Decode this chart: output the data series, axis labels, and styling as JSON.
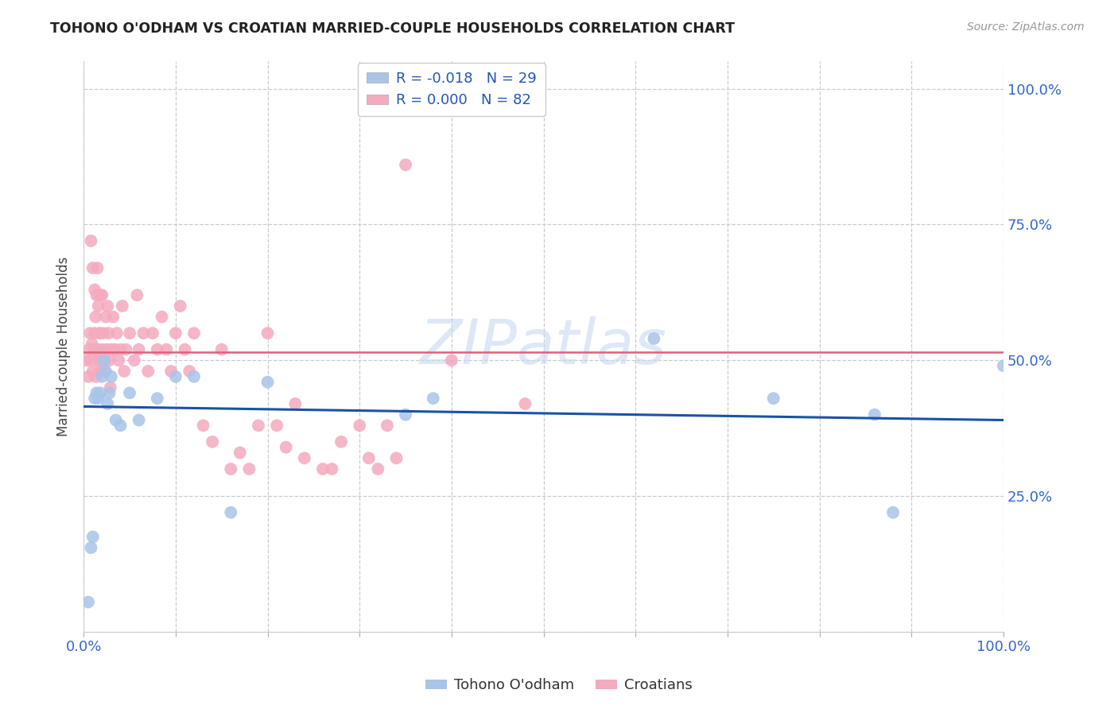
{
  "title": "TOHONO O'ODHAM VS CROATIAN MARRIED-COUPLE HOUSEHOLDS CORRELATION CHART",
  "source": "Source: ZipAtlas.com",
  "ylabel": "Married-couple Households",
  "legend_labels": [
    "Tohono O'odham",
    "Croatians"
  ],
  "r_blue": -0.018,
  "n_blue": 29,
  "r_pink": 0.0,
  "n_pink": 82,
  "blue_color": "#A8C4E8",
  "pink_color": "#F4AABF",
  "blue_line_color": "#1A52A8",
  "pink_line_color": "#E0607A",
  "blue_scatter_x": [
    0.005,
    0.008,
    0.01,
    0.012,
    0.014,
    0.016,
    0.018,
    0.02,
    0.022,
    0.024,
    0.026,
    0.028,
    0.03,
    0.035,
    0.04,
    0.05,
    0.06,
    0.08,
    0.1,
    0.12,
    0.16,
    0.2,
    0.35,
    0.38,
    0.62,
    0.75,
    0.86,
    0.88,
    1.0
  ],
  "blue_scatter_y": [
    0.055,
    0.155,
    0.175,
    0.43,
    0.44,
    0.43,
    0.44,
    0.47,
    0.5,
    0.48,
    0.42,
    0.44,
    0.47,
    0.39,
    0.38,
    0.44,
    0.39,
    0.43,
    0.47,
    0.47,
    0.22,
    0.46,
    0.4,
    0.43,
    0.54,
    0.43,
    0.4,
    0.22,
    0.49
  ],
  "pink_scatter_x": [
    0.003,
    0.005,
    0.006,
    0.007,
    0.008,
    0.008,
    0.009,
    0.01,
    0.01,
    0.011,
    0.012,
    0.012,
    0.013,
    0.013,
    0.014,
    0.015,
    0.015,
    0.016,
    0.016,
    0.017,
    0.018,
    0.018,
    0.019,
    0.02,
    0.02,
    0.021,
    0.022,
    0.023,
    0.024,
    0.025,
    0.026,
    0.027,
    0.028,
    0.029,
    0.03,
    0.032,
    0.034,
    0.036,
    0.038,
    0.04,
    0.042,
    0.044,
    0.046,
    0.05,
    0.055,
    0.058,
    0.06,
    0.065,
    0.07,
    0.075,
    0.08,
    0.085,
    0.09,
    0.095,
    0.1,
    0.105,
    0.11,
    0.115,
    0.12,
    0.13,
    0.14,
    0.15,
    0.16,
    0.17,
    0.18,
    0.19,
    0.2,
    0.21,
    0.22,
    0.23,
    0.24,
    0.26,
    0.27,
    0.28,
    0.3,
    0.31,
    0.32,
    0.33,
    0.34,
    0.35,
    0.4,
    0.48
  ],
  "pink_scatter_y": [
    0.5,
    0.47,
    0.52,
    0.55,
    0.5,
    0.72,
    0.53,
    0.48,
    0.67,
    0.52,
    0.55,
    0.63,
    0.47,
    0.58,
    0.62,
    0.52,
    0.67,
    0.5,
    0.6,
    0.55,
    0.48,
    0.62,
    0.5,
    0.52,
    0.62,
    0.55,
    0.48,
    0.5,
    0.58,
    0.52,
    0.6,
    0.55,
    0.5,
    0.45,
    0.52,
    0.58,
    0.52,
    0.55,
    0.5,
    0.52,
    0.6,
    0.48,
    0.52,
    0.55,
    0.5,
    0.62,
    0.52,
    0.55,
    0.48,
    0.55,
    0.52,
    0.58,
    0.52,
    0.48,
    0.55,
    0.6,
    0.52,
    0.48,
    0.55,
    0.38,
    0.35,
    0.52,
    0.3,
    0.33,
    0.3,
    0.38,
    0.55,
    0.38,
    0.34,
    0.42,
    0.32,
    0.3,
    0.3,
    0.35,
    0.38,
    0.32,
    0.3,
    0.38,
    0.32,
    0.86,
    0.5,
    0.42
  ],
  "blue_line_y": [
    0.415,
    0.39
  ],
  "pink_line_y": [
    0.515,
    0.515
  ],
  "xlim": [
    0.0,
    1.0
  ],
  "ylim": [
    0.0,
    1.05
  ]
}
